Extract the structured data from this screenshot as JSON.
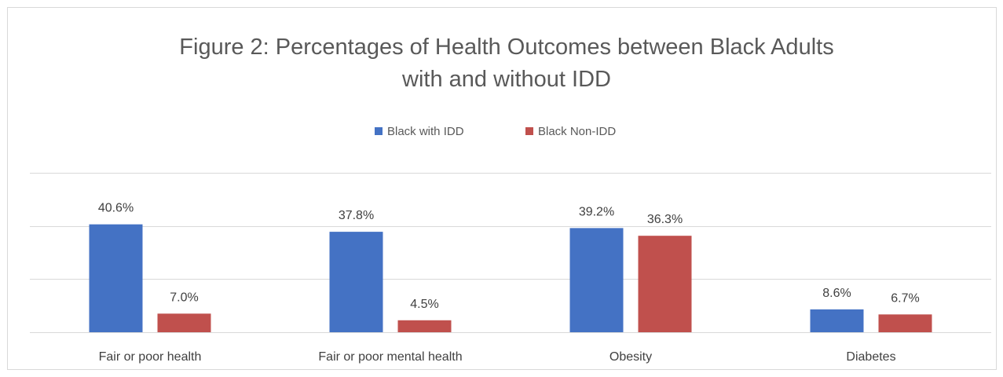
{
  "chart_data": {
    "type": "bar",
    "title_lines": [
      "Figure 2: Percentages of Health Outcomes between Black Adults",
      "with and without IDD"
    ],
    "categories": [
      "Fair or poor health",
      "Fair or poor mental health",
      "Obesity",
      "Diabetes"
    ],
    "series": [
      {
        "name": "Black with IDD",
        "color": "#4472c4",
        "values": [
          40.6,
          37.8,
          39.2,
          8.6
        ],
        "labels": [
          "40.6%",
          "37.8%",
          "39.2%",
          "8.6%"
        ]
      },
      {
        "name": "Black Non-IDD",
        "color": "#c0504d",
        "values": [
          7.0,
          4.5,
          36.3,
          6.7
        ],
        "labels": [
          "7.0%",
          "4.5%",
          "36.3%",
          "6.7%"
        ]
      }
    ],
    "ylim": [
      0,
      60
    ],
    "yticks": [
      0,
      20,
      40,
      60
    ],
    "grid": true,
    "legend": "top-center",
    "axis_tick_labels_shown": false
  }
}
